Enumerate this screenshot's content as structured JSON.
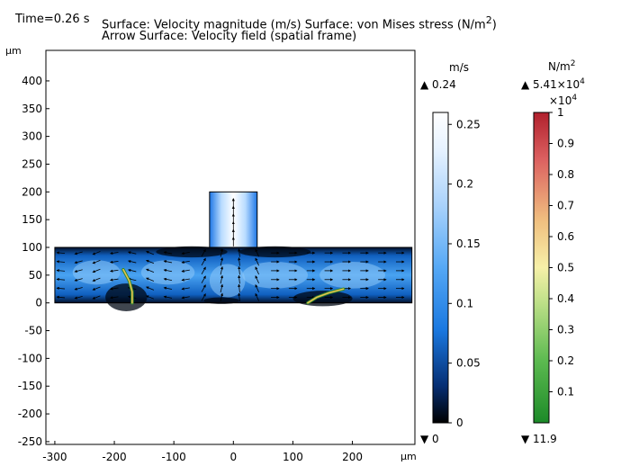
{
  "header": {
    "time_label": "Time=0.26 s",
    "line1": "Surface: Velocity magnitude (m/s)  Surface: von Mises stress (N/m",
    "line1_sup": "2",
    "line1_end": ")",
    "line2": "Arrow Surface: Velocity field (spatial frame)"
  },
  "colorbars": {
    "velocity": {
      "unit": "m/s",
      "max_marker": "▲ 0.24",
      "min_marker": "▼ 0",
      "ticks": [
        "0.25",
        "0.2",
        "0.15",
        "0.1",
        "0.05",
        "0"
      ],
      "tick_values": [
        0.25,
        0.2,
        0.15,
        0.1,
        0.05,
        0
      ],
      "range": [
        0,
        0.26
      ]
    },
    "stress": {
      "unit": "N/m",
      "unit_sup": "2",
      "max_marker": "▲ 5.41×10",
      "max_marker_sup": "4",
      "multiplier": "×10",
      "multiplier_sup": "4",
      "min_marker": "▼ 11.9",
      "ticks": [
        "1",
        "0.9",
        "0.8",
        "0.7",
        "0.6",
        "0.5",
        "0.4",
        "0.3",
        "0.2",
        "0.1"
      ],
      "tick_values": [
        1,
        0.9,
        0.8,
        0.7,
        0.6,
        0.5,
        0.4,
        0.3,
        0.2,
        0.1
      ],
      "range": [
        0,
        1.0
      ]
    }
  },
  "chart_data": {
    "type": "heatmap",
    "title": "Surface: Velocity magnitude (m/s)  Surface: von Mises stress (N/m2) Arrow Surface: Velocity field (spatial frame)",
    "xlabel": "µm",
    "ylabel": "µm",
    "xlim": [
      -315,
      305
    ],
    "ylim": [
      -255,
      455
    ],
    "xticks": [
      -300,
      -200,
      -100,
      0,
      100,
      200
    ],
    "xtick_labels": [
      "-300",
      "-200",
      "-100",
      "0",
      "100",
      "200"
    ],
    "yticks": [
      400,
      350,
      300,
      250,
      200,
      150,
      100,
      50,
      0,
      -50,
      -100,
      -150,
      -200,
      -250
    ],
    "ytick_labels": [
      "400",
      "350",
      "300",
      "250",
      "200",
      "150",
      "100",
      "50",
      "0",
      "-50",
      "-100",
      "-150",
      "-200",
      "-250"
    ],
    "grid": false,
    "geometry": {
      "channel_x": [
        -300,
        300
      ],
      "channel_y": [
        0,
        100
      ],
      "outlet_x": [
        -40,
        40
      ],
      "outlet_y": [
        100,
        200
      ]
    },
    "valves": [
      {
        "name": "left flap",
        "points": [
          [
            -185,
            60
          ],
          [
            -175,
            40
          ],
          [
            -170,
            20
          ],
          [
            -170,
            0
          ]
        ]
      },
      {
        "name": "right flap",
        "points": [
          [
            125,
            0
          ],
          [
            140,
            10
          ],
          [
            160,
            18
          ],
          [
            185,
            25
          ]
        ]
      }
    ]
  }
}
